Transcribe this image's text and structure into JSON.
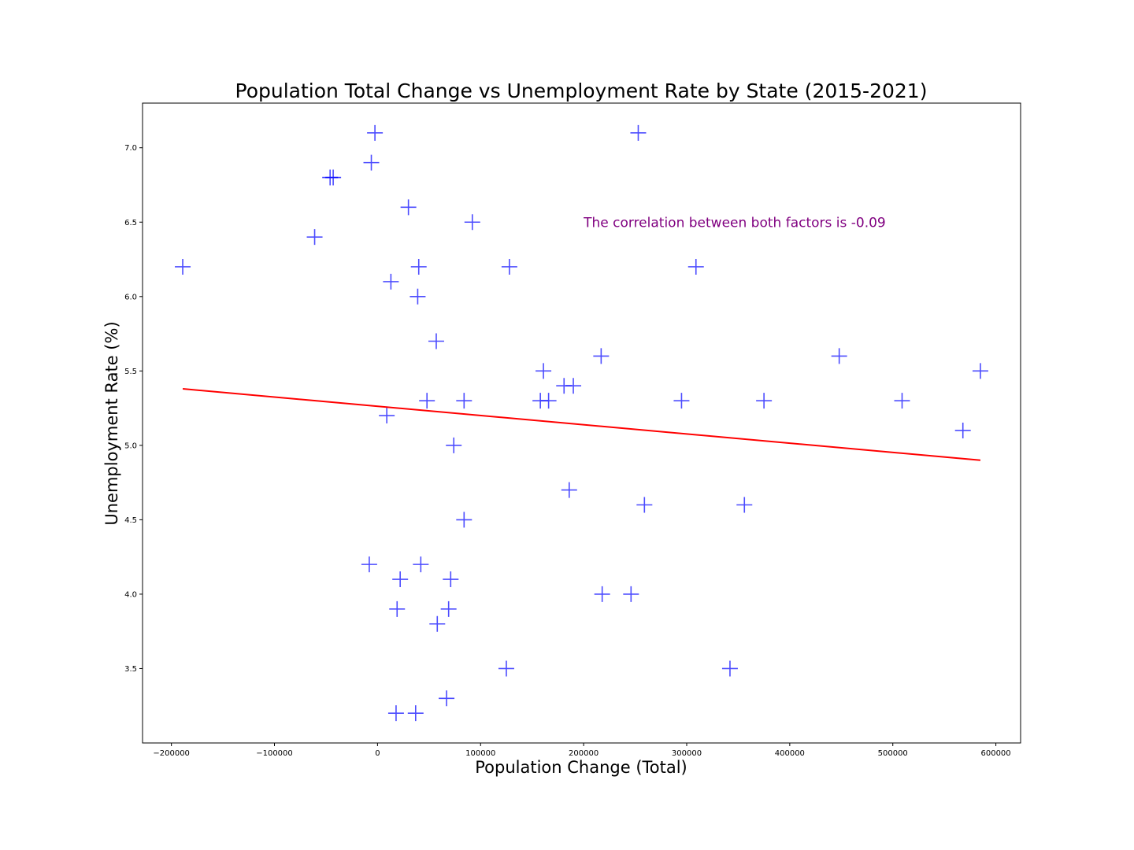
{
  "chart_data": {
    "type": "scatter",
    "title": "Population Total Change vs Unemployment Rate by State (2015-2021)",
    "xlabel": "Population Change (Total)",
    "ylabel": "Unemployment Rate (%)",
    "xlim": [
      -228000,
      624000
    ],
    "ylim": [
      3.0,
      7.3
    ],
    "x_ticks": [
      -200000,
      -100000,
      0,
      100000,
      200000,
      300000,
      400000,
      500000,
      600000
    ],
    "x_tick_labels": [
      "−200000",
      "−100000",
      "0",
      "100000",
      "200000",
      "300000",
      "400000",
      "500000",
      "600000"
    ],
    "y_ticks": [
      3.5,
      4.0,
      4.5,
      5.0,
      5.5,
      6.0,
      6.5,
      7.0
    ],
    "y_tick_labels": [
      "3.5",
      "4.0",
      "4.5",
      "5.0",
      "5.5",
      "6.0",
      "6.5",
      "7.0"
    ],
    "grid": false,
    "marker": "+",
    "marker_color": "#0000ff",
    "trend_color": "#ff0000",
    "annotation_color": "#800080",
    "annotation": "The correlation between both factors is -0.09",
    "annotation_position": [
      200000,
      6.5
    ],
    "trendline": {
      "x": [
        -189000,
        585000
      ],
      "y": [
        5.38,
        4.9
      ]
    },
    "points": [
      {
        "x": -189000,
        "y": 6.2
      },
      {
        "x": -2500,
        "y": 7.1
      },
      {
        "x": -6000,
        "y": 6.9
      },
      {
        "x": -46000,
        "y": 6.8
      },
      {
        "x": -43000,
        "y": 6.8
      },
      {
        "x": -61000,
        "y": 6.4
      },
      {
        "x": 30000,
        "y": 6.6
      },
      {
        "x": 92000,
        "y": 6.5
      },
      {
        "x": 253000,
        "y": 7.1
      },
      {
        "x": 13000,
        "y": 6.1
      },
      {
        "x": 40000,
        "y": 6.2
      },
      {
        "x": 128000,
        "y": 6.2
      },
      {
        "x": 309000,
        "y": 6.2
      },
      {
        "x": 39000,
        "y": 6.0
      },
      {
        "x": 57000,
        "y": 5.7
      },
      {
        "x": 217000,
        "y": 5.6
      },
      {
        "x": 448000,
        "y": 5.6
      },
      {
        "x": 161000,
        "y": 5.5
      },
      {
        "x": 585000,
        "y": 5.5
      },
      {
        "x": 181000,
        "y": 5.4
      },
      {
        "x": 190000,
        "y": 5.4
      },
      {
        "x": 48000,
        "y": 5.3
      },
      {
        "x": 84000,
        "y": 5.3
      },
      {
        "x": 158000,
        "y": 5.3
      },
      {
        "x": 166000,
        "y": 5.3
      },
      {
        "x": 295000,
        "y": 5.3
      },
      {
        "x": 375000,
        "y": 5.3
      },
      {
        "x": 509000,
        "y": 5.3
      },
      {
        "x": 9000,
        "y": 5.2
      },
      {
        "x": 568000,
        "y": 5.1
      },
      {
        "x": 74000,
        "y": 5.0
      },
      {
        "x": 186000,
        "y": 4.7
      },
      {
        "x": 259000,
        "y": 4.6
      },
      {
        "x": 356000,
        "y": 4.6
      },
      {
        "x": 84000,
        "y": 4.5
      },
      {
        "x": -8000,
        "y": 4.2
      },
      {
        "x": 42000,
        "y": 4.2
      },
      {
        "x": 22000,
        "y": 4.1
      },
      {
        "x": 71000,
        "y": 4.1
      },
      {
        "x": 218000,
        "y": 4.0
      },
      {
        "x": 246000,
        "y": 4.0
      },
      {
        "x": 19000,
        "y": 3.9
      },
      {
        "x": 69000,
        "y": 3.9
      },
      {
        "x": 58000,
        "y": 3.8
      },
      {
        "x": 125000,
        "y": 3.5
      },
      {
        "x": 342000,
        "y": 3.5
      },
      {
        "x": 67000,
        "y": 3.3
      },
      {
        "x": 18000,
        "y": 3.2
      },
      {
        "x": 37000,
        "y": 3.2
      }
    ]
  }
}
